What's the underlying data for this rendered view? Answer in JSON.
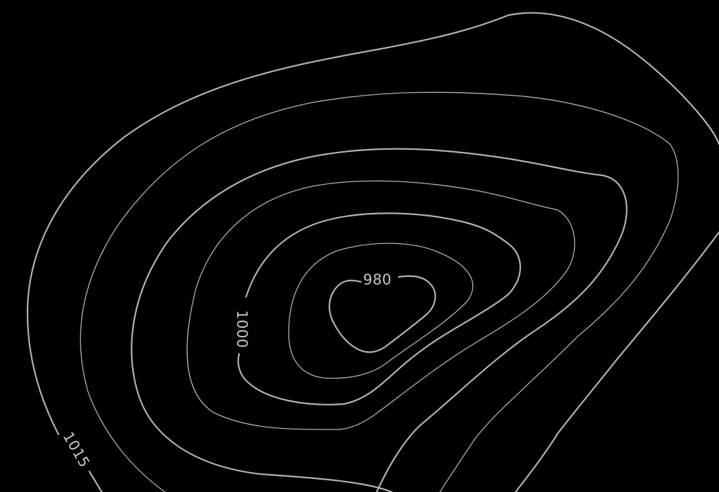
{
  "map": {
    "background_color": "#000000",
    "line_color": "#b4b4b4",
    "label_color": "#c8c8c8",
    "contour_labels": [
      {
        "id": "label-980",
        "text": "980"
      },
      {
        "id": "label-1000",
        "text": "1000"
      },
      {
        "id": "label-1015",
        "text": "1015"
      }
    ]
  }
}
